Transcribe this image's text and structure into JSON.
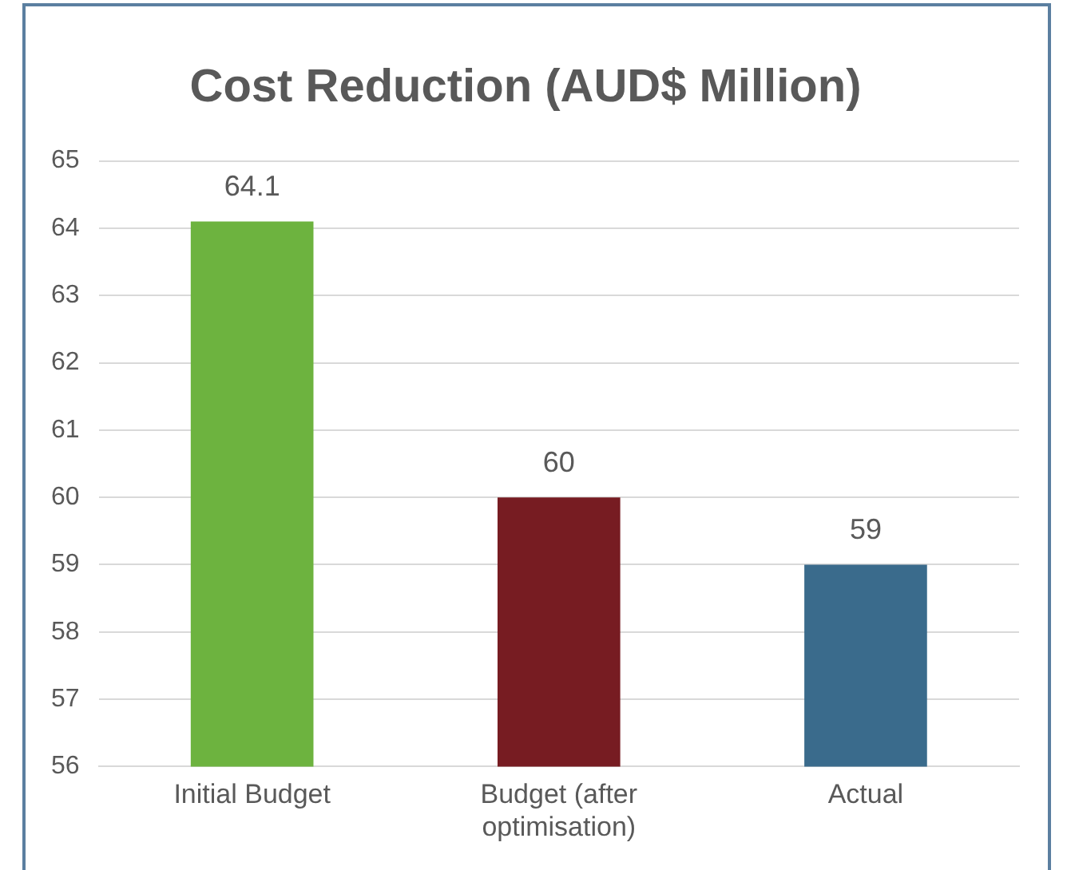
{
  "chart_data": {
    "type": "bar",
    "title": "Cost Reduction (AUD$ Million)",
    "categories": [
      "Initial Budget",
      "Budget (after optimisation)",
      "Actual"
    ],
    "values": [
      64.1,
      60,
      59
    ],
    "colors": [
      "#6db33f",
      "#771c22",
      "#3a6b8c"
    ],
    "ylim": [
      56,
      65
    ],
    "yticks": [
      56,
      57,
      58,
      59,
      60,
      61,
      62,
      63,
      64,
      65
    ],
    "grid": "y",
    "legend": false,
    "data_labels": true
  }
}
